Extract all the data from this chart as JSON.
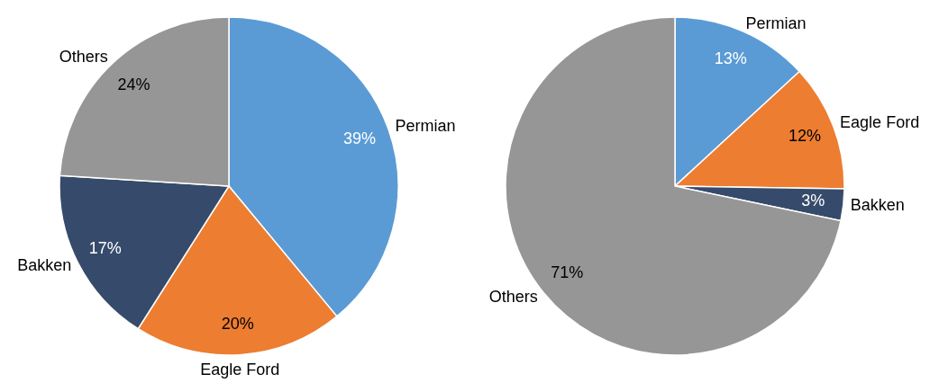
{
  "chart_data": [
    {
      "type": "pie",
      "categories": [
        "Permian",
        "Eagle Ford",
        "Bakken",
        "Others"
      ],
      "values": [
        39,
        20,
        17,
        24
      ],
      "colors": [
        "#5b9bd5",
        "#ed7d31",
        "#364b6b",
        "#969696"
      ],
      "value_labels": [
        "39%",
        "20%",
        "17%",
        "24%"
      ]
    },
    {
      "type": "pie",
      "categories": [
        "Permian",
        "Eagle Ford",
        "Bakken",
        "Others"
      ],
      "values": [
        13,
        12,
        3,
        71
      ],
      "colors": [
        "#5b9bd5",
        "#ed7d31",
        "#364b6b",
        "#969696"
      ],
      "value_labels": [
        "13%",
        "12%",
        "3%",
        "71%"
      ]
    }
  ]
}
